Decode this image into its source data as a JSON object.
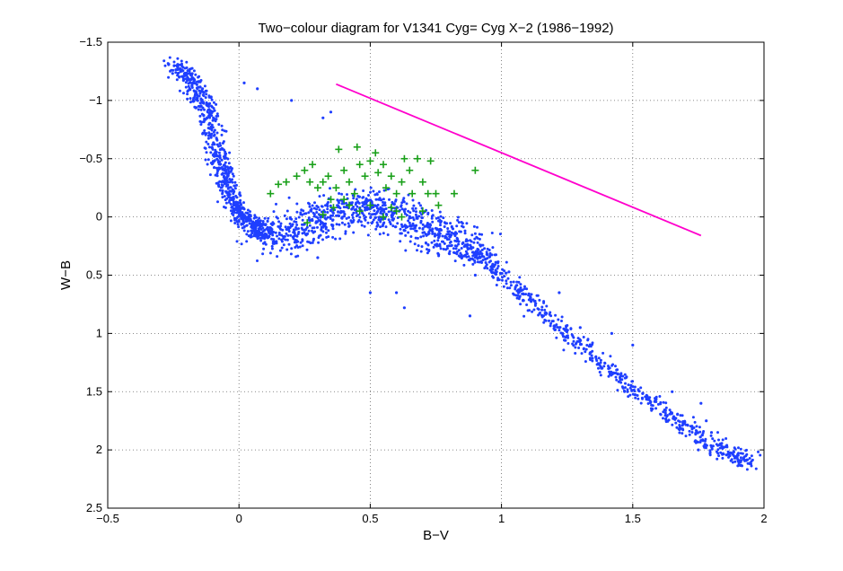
{
  "chart_data": {
    "type": "scatter",
    "title": "Two−colour diagram for V1341 Cyg= Cyg X−2 (1986−1992)",
    "xlabel": "B−V",
    "ylabel": "W−B",
    "xlim": [
      -0.5,
      2
    ],
    "ylim": [
      2.5,
      -1.5
    ],
    "y_inverted": true,
    "grid": true,
    "xticks": [
      {
        "value": -0.5,
        "label": "−0.5"
      },
      {
        "value": 0,
        "label": "0"
      },
      {
        "value": 0.5,
        "label": "0.5"
      },
      {
        "value": 1,
        "label": "1"
      },
      {
        "value": 1.5,
        "label": "1.5"
      },
      {
        "value": 2,
        "label": "2"
      }
    ],
    "yticks": [
      {
        "value": -1.5,
        "label": "−1.5"
      },
      {
        "value": -1,
        "label": "−1"
      },
      {
        "value": -0.5,
        "label": "−0.5"
      },
      {
        "value": 0,
        "label": "0"
      },
      {
        "value": 0.5,
        "label": "0.5"
      },
      {
        "value": 1,
        "label": "1"
      },
      {
        "value": 1.5,
        "label": "1.5"
      },
      {
        "value": 2,
        "label": "2"
      },
      {
        "value": 2.5,
        "label": "2.5"
      }
    ],
    "series": [
      {
        "name": "Cyg X-2 observations (dots)",
        "marker": "dot",
        "color": "#1f3fff",
        "ridge": [
          {
            "x": -0.24,
            "y": -1.32
          },
          {
            "x": -0.18,
            "y": -1.15
          },
          {
            "x": -0.12,
            "y": -0.9
          },
          {
            "x": -0.08,
            "y": -0.55
          },
          {
            "x": -0.05,
            "y": -0.3
          },
          {
            "x": 0.0,
            "y": -0.05
          },
          {
            "x": 0.05,
            "y": 0.08
          },
          {
            "x": 0.1,
            "y": 0.15
          },
          {
            "x": 0.2,
            "y": 0.14
          },
          {
            "x": 0.3,
            "y": 0.05
          },
          {
            "x": 0.4,
            "y": -0.08
          },
          {
            "x": 0.5,
            "y": -0.1
          },
          {
            "x": 0.6,
            "y": -0.02
          },
          {
            "x": 0.7,
            "y": 0.1
          },
          {
            "x": 0.8,
            "y": 0.2
          },
          {
            "x": 0.9,
            "y": 0.28
          },
          {
            "x": 1.0,
            "y": 0.5
          },
          {
            "x": 1.2,
            "y": 0.9
          },
          {
            "x": 1.4,
            "y": 1.3
          },
          {
            "x": 1.6,
            "y": 1.65
          },
          {
            "x": 1.8,
            "y": 1.95
          },
          {
            "x": 1.95,
            "y": 2.12
          }
        ],
        "outliers": [
          {
            "x": 0.07,
            "y": -1.1
          },
          {
            "x": 0.02,
            "y": -1.15
          },
          {
            "x": 0.2,
            "y": -1.0
          },
          {
            "x": 0.32,
            "y": -0.85
          },
          {
            "x": 0.35,
            "y": -0.9
          },
          {
            "x": 0.3,
            "y": 0.35
          },
          {
            "x": 0.5,
            "y": 0.65
          },
          {
            "x": 0.6,
            "y": 0.65
          },
          {
            "x": 0.63,
            "y": 0.78
          },
          {
            "x": 0.88,
            "y": 0.85
          },
          {
            "x": 0.9,
            "y": 0.5
          },
          {
            "x": 1.22,
            "y": 0.65
          },
          {
            "x": 1.3,
            "y": 0.95
          },
          {
            "x": 1.42,
            "y": 1.0
          },
          {
            "x": 1.5,
            "y": 1.1
          },
          {
            "x": 1.65,
            "y": 1.5
          },
          {
            "x": 1.76,
            "y": 1.6
          },
          {
            "x": 1.78,
            "y": 1.75
          },
          {
            "x": 1.8,
            "y": 1.85
          },
          {
            "x": 1.87,
            "y": 2.05
          },
          {
            "x": 1.95,
            "y": 2.12
          },
          {
            "x": 1.75,
            "y": 2.0
          }
        ]
      },
      {
        "name": "Green crosses",
        "marker": "plus",
        "color": "#1aa01a",
        "points": [
          {
            "x": 0.12,
            "y": -0.2
          },
          {
            "x": 0.15,
            "y": -0.28
          },
          {
            "x": 0.18,
            "y": -0.3
          },
          {
            "x": 0.22,
            "y": -0.35
          },
          {
            "x": 0.25,
            "y": -0.4
          },
          {
            "x": 0.27,
            "y": -0.3
          },
          {
            "x": 0.28,
            "y": -0.45
          },
          {
            "x": 0.3,
            "y": -0.25
          },
          {
            "x": 0.32,
            "y": -0.3
          },
          {
            "x": 0.34,
            "y": -0.35
          },
          {
            "x": 0.35,
            "y": -0.15
          },
          {
            "x": 0.37,
            "y": -0.25
          },
          {
            "x": 0.38,
            "y": -0.58
          },
          {
            "x": 0.4,
            "y": -0.4
          },
          {
            "x": 0.42,
            "y": -0.3
          },
          {
            "x": 0.44,
            "y": -0.2
          },
          {
            "x": 0.45,
            "y": -0.6
          },
          {
            "x": 0.46,
            "y": -0.45
          },
          {
            "x": 0.48,
            "y": -0.35
          },
          {
            "x": 0.5,
            "y": -0.48
          },
          {
            "x": 0.52,
            "y": -0.55
          },
          {
            "x": 0.53,
            "y": -0.38
          },
          {
            "x": 0.55,
            "y": -0.45
          },
          {
            "x": 0.56,
            "y": -0.25
          },
          {
            "x": 0.58,
            "y": -0.35
          },
          {
            "x": 0.6,
            "y": -0.2
          },
          {
            "x": 0.62,
            "y": -0.3
          },
          {
            "x": 0.63,
            "y": -0.5
          },
          {
            "x": 0.65,
            "y": -0.4
          },
          {
            "x": 0.66,
            "y": -0.2
          },
          {
            "x": 0.68,
            "y": -0.5
          },
          {
            "x": 0.7,
            "y": -0.3
          },
          {
            "x": 0.72,
            "y": -0.2
          },
          {
            "x": 0.73,
            "y": -0.48
          },
          {
            "x": 0.75,
            "y": -0.2
          },
          {
            "x": 0.76,
            "y": -0.1
          },
          {
            "x": 0.82,
            "y": -0.2
          },
          {
            "x": 0.9,
            "y": -0.4
          },
          {
            "x": 0.58,
            "y": -0.08
          },
          {
            "x": 0.6,
            "y": -0.05
          },
          {
            "x": 0.55,
            "y": 0.0
          },
          {
            "x": 0.5,
            "y": -0.1
          },
          {
            "x": 0.46,
            "y": -0.05
          },
          {
            "x": 0.42,
            "y": -0.1
          },
          {
            "x": 0.62,
            "y": 0.0
          },
          {
            "x": 0.4,
            "y": -0.15
          },
          {
            "x": 0.36,
            "y": -0.08
          },
          {
            "x": 0.32,
            "y": -0.02
          },
          {
            "x": 0.26,
            "y": 0.05
          },
          {
            "x": 0.7,
            "y": -0.05
          }
        ]
      },
      {
        "name": "Reddening line",
        "marker": "line",
        "color": "#ff00cc",
        "points": [
          {
            "x": 0.37,
            "y": -1.14
          },
          {
            "x": 1.76,
            "y": 0.16
          }
        ]
      }
    ]
  }
}
